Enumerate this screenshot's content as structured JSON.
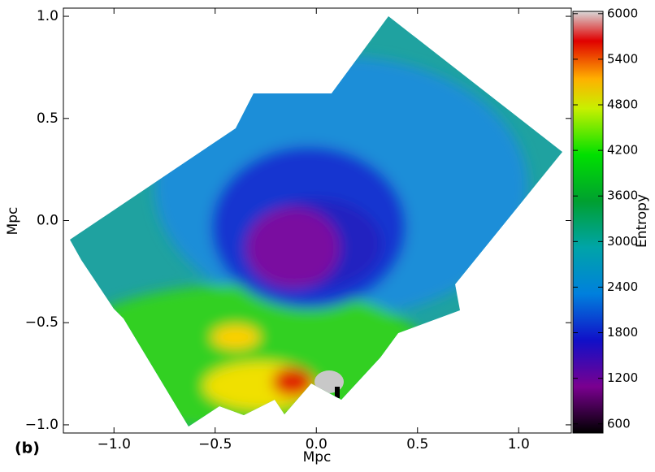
{
  "chart_data": {
    "type": "heatmap",
    "panel_label": "(b)",
    "xlabel": "Mpc",
    "ylabel": "Mpc",
    "xlim": [
      -1.25,
      1.26
    ],
    "ylim": [
      -1.04,
      1.04
    ],
    "xticks": [
      {
        "value": -1.0,
        "label": "−1.0"
      },
      {
        "value": -0.5,
        "label": "−0.5"
      },
      {
        "value": 0.0,
        "label": "0.0"
      },
      0.5,
      {
        "value": 1.0,
        "label": "1.0"
      }
    ],
    "yticks": [
      {
        "value": -1.0,
        "label": "−1.0"
      },
      {
        "value": -0.5,
        "label": "−0.5"
      },
      {
        "value": 0.0,
        "label": "0.0"
      },
      0.5,
      {
        "value": 1.0,
        "label": "1.0"
      }
    ],
    "colorbar": {
      "label": "Entropy",
      "lim": [
        480,
        6030
      ],
      "ticks": [
        600,
        1200,
        1800,
        2400,
        3000,
        3600,
        4200,
        4800,
        5400,
        6000
      ]
    }
  }
}
